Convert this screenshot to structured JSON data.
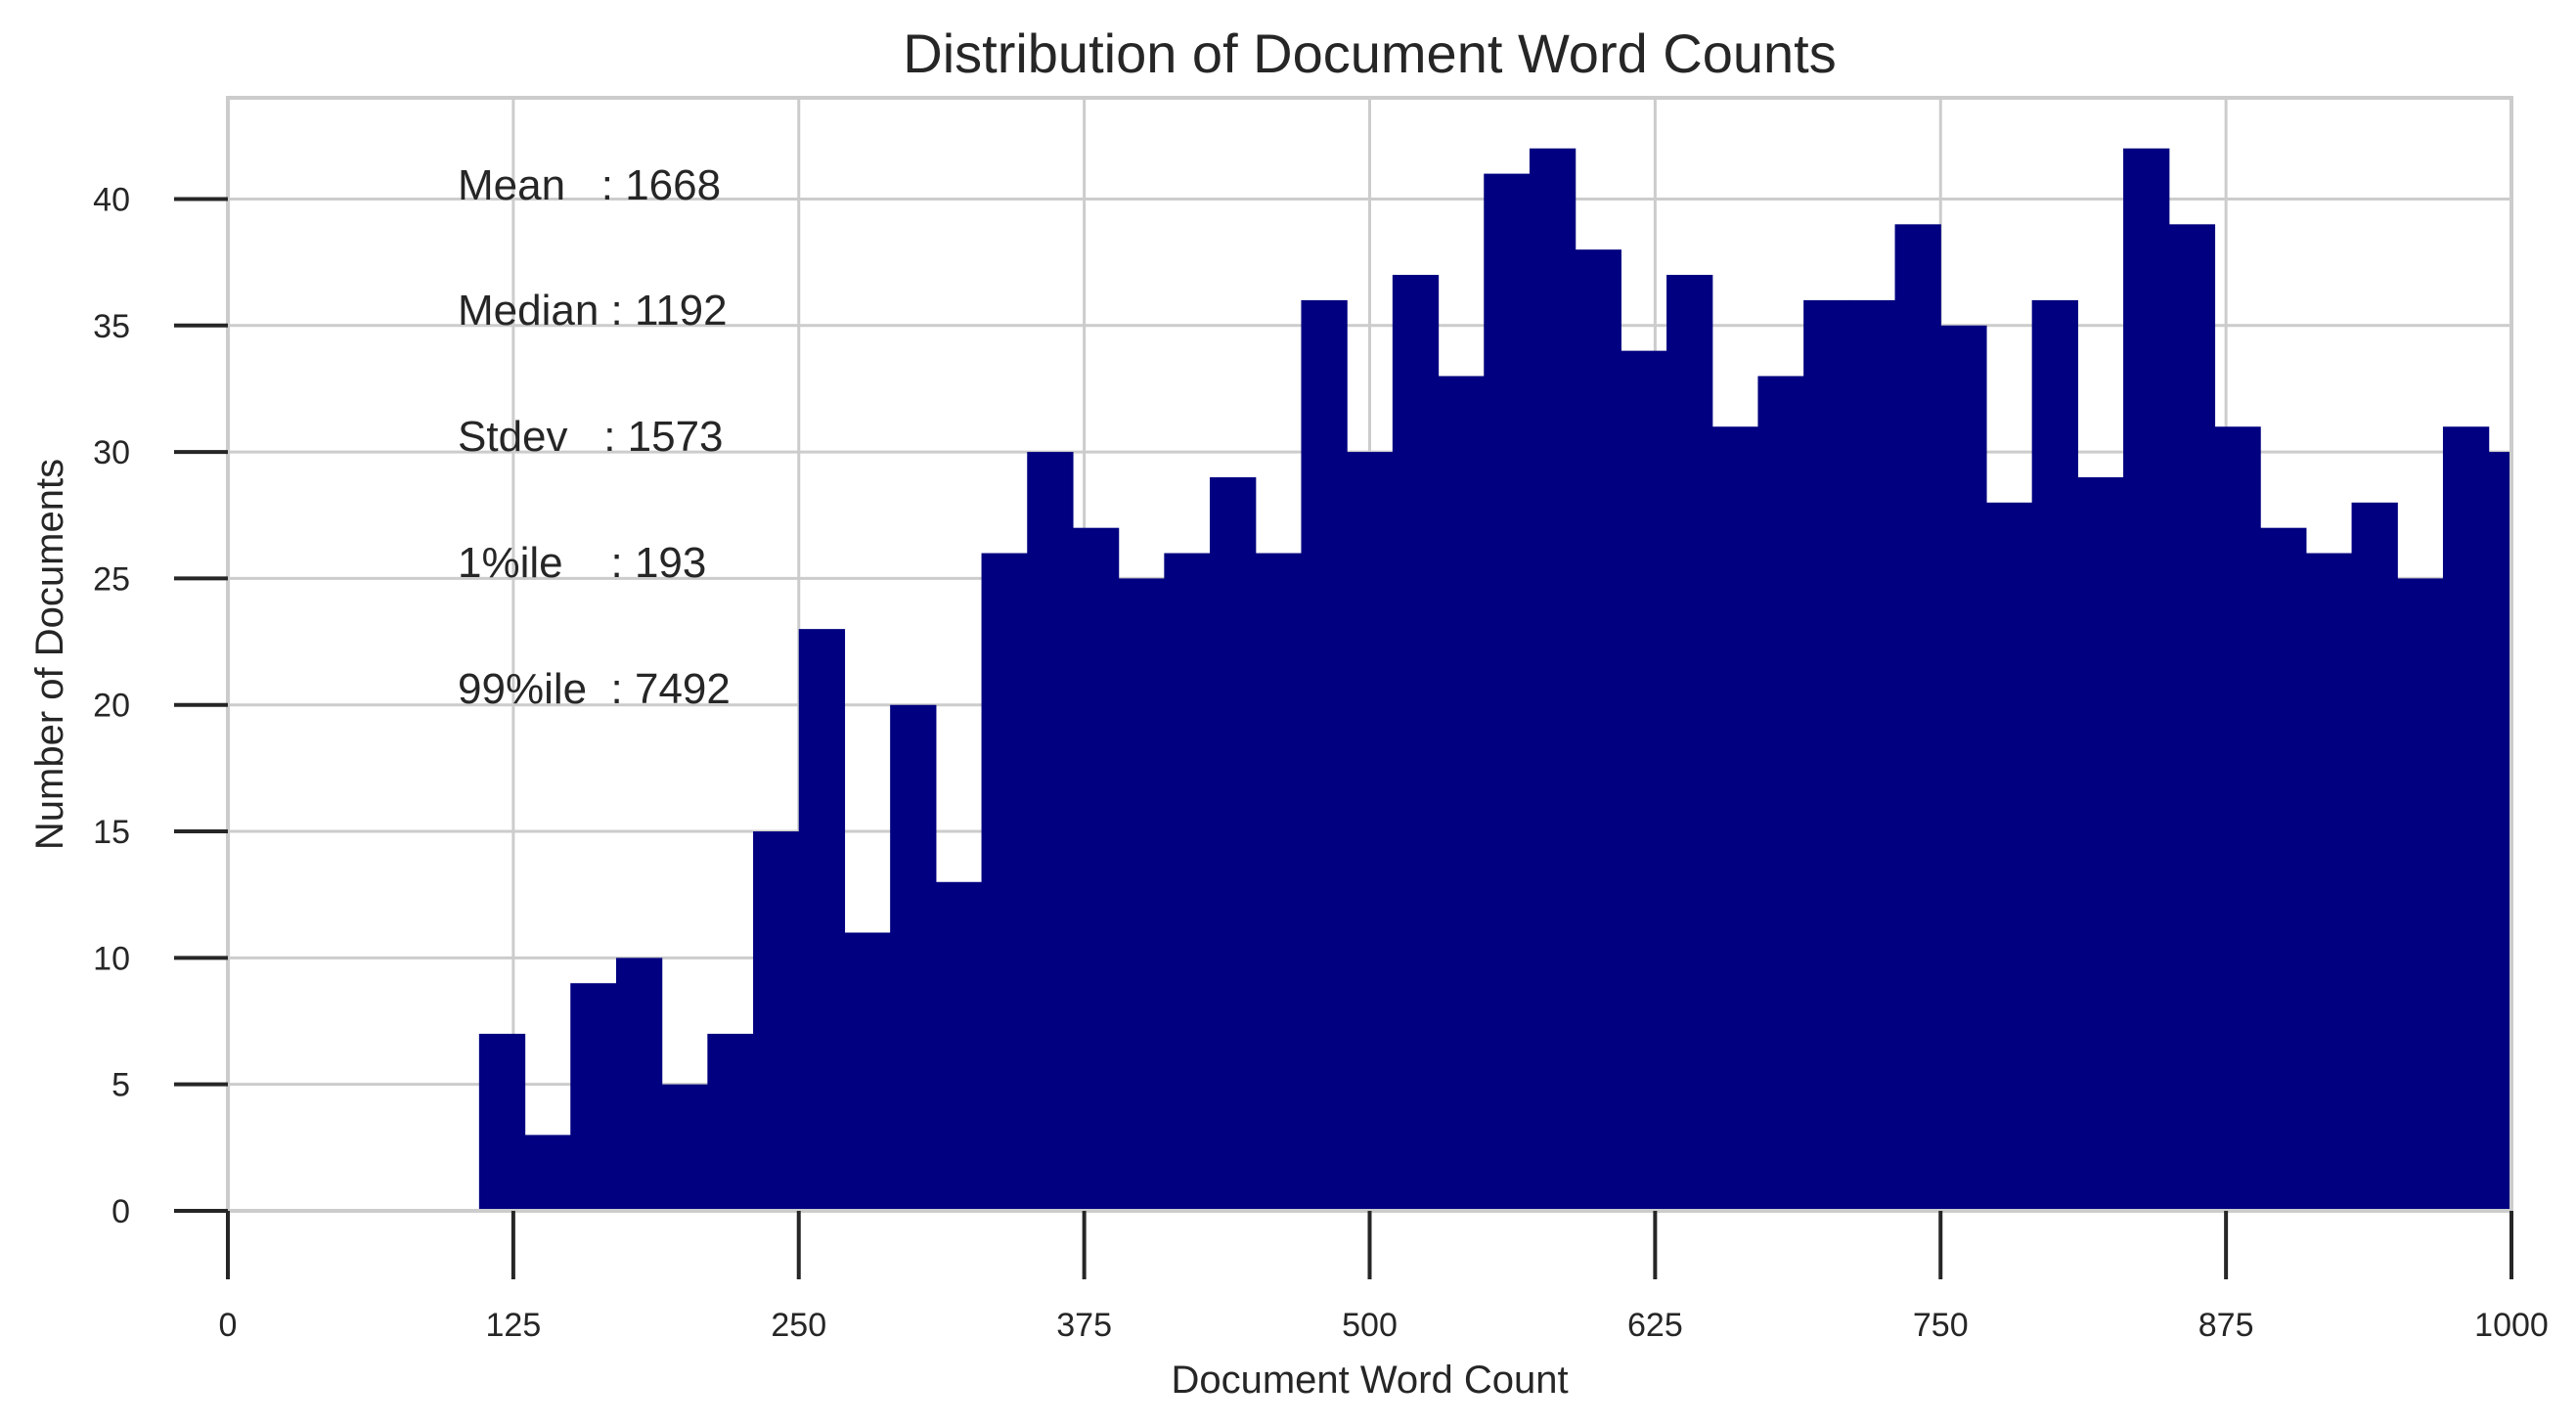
{
  "chart_data": {
    "type": "bar",
    "title": "Distribution of Document Word Counts",
    "xlabel": "Document Word Count",
    "ylabel": "Number of Documents",
    "xlim": [
      0,
      1000
    ],
    "ylim": [
      0,
      44
    ],
    "xticks": [
      0,
      125,
      250,
      375,
      500,
      625,
      750,
      875,
      1000
    ],
    "yticks": [
      0,
      5,
      10,
      15,
      20,
      25,
      30,
      35,
      40
    ],
    "grid": true,
    "bar_color": "#000080",
    "bin_width": 20,
    "bins_start": [
      110,
      130,
      150,
      170,
      190,
      210,
      230,
      250,
      270,
      290,
      310,
      330,
      350,
      370,
      390,
      410,
      430,
      450,
      470,
      490,
      510,
      530,
      550,
      570,
      590,
      610,
      630,
      650,
      670,
      690,
      710,
      730,
      750,
      770,
      790,
      810,
      830,
      850,
      870,
      890,
      910,
      930,
      950,
      970,
      990
    ],
    "values": [
      7,
      3,
      9,
      10,
      5,
      7,
      15,
      23,
      11,
      20,
      13,
      26,
      30,
      27,
      25,
      26,
      29,
      26,
      36,
      30,
      37,
      33,
      41,
      42,
      38,
      34,
      37,
      31,
      33,
      36,
      36,
      39,
      35,
      28,
      36,
      29,
      42,
      39,
      31,
      27,
      26,
      28,
      25,
      31,
      30
    ],
    "annotations": [
      {
        "label": "Mean   : 1668"
      },
      {
        "label": "Median : 1192"
      },
      {
        "label": "Stdev   : 1573"
      },
      {
        "label": "1%ile    : 193"
      },
      {
        "label": "99%ile  : 7492"
      }
    ]
  }
}
